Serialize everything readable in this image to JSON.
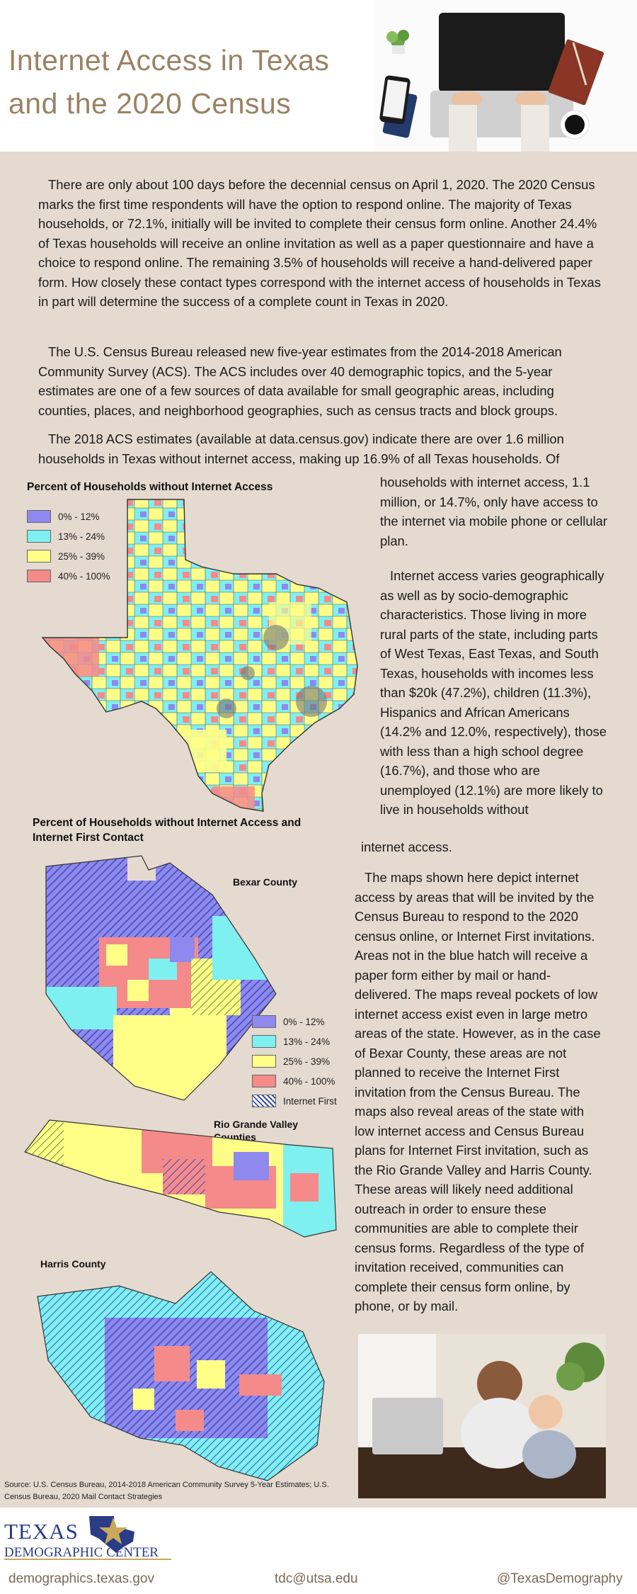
{
  "header": {
    "title_line1": "Internet Access in Texas",
    "title_line2": "and the 2020 Census",
    "image_icon": "laptop-desk-photo"
  },
  "body": {
    "p1": "There are only about 100 days before the decennial census on April 1, 2020. The 2020 Census marks the first time respondents will have the option to respond online. The majority of Texas households, or 72.1%, initially will be invited to complete their census form online. Another 24.4% of Texas households will receive an online invitation as well as a paper questionnaire and have a choice to respond online. The remaining 3.5% of households will receive a hand-delivered paper form. How closely these contact types correspond with the internet access of households in Texas in part will determine the success of a complete count in Texas in 2020.",
    "p2": "The U.S. Census Bureau released new five-year estimates from the 2014-2018 American Community Survey (ACS). The ACS includes over 40 demographic topics, and the 5-year estimates are one of a few sources of data available for small geographic areas, including counties, places, and neighborhood geographies, such as census tracts and block groups.",
    "p3_full": "The 2018 ACS estimates (available at data.census.gov) indicate there are over 1.6 million households in Texas without internet access, making up 16.9% of all Texas households. Of",
    "p3_cont": "households with internet access, 1.1 million, or 14.7%, only have access to the internet via mobile phone or cellular plan.",
    "p4": "Internet access varies geographically as well as by socio-demographic characteristics. Those living in more rural parts of the state, including parts of West Texas, East Texas, and South Texas, households with incomes less than $20k (47.2%), children (11.3%), Hispanics and African Americans (14.2% and 12.0%, respectively), those with less than a high school degree (16.7%), and those who are unemployed (12.1%) are more likely to live in households without",
    "p4_tail": "internet access.",
    "p5": "The maps shown here depict internet access by areas that will be invited by the Census Bureau to respond to the 2020 census online, or Internet First invitations. Areas not in the blue hatch will receive a paper form either by mail or hand-delivered. The maps reveal pockets of low internet access exist even in large metro areas of the state. However, as in the case of Bexar County, these areas are not planned to receive the Internet First invitation from the Census Bureau. The maps also reveal areas of the state with low internet access and Census Bureau plans for Internet First invitation, such as the Rio Grande Valley and Harris County. These areas will likely need additional outreach in order to ensure these communities are able to complete their census forms. Regardless of the type of invitation received, communities can complete their census form online, by phone, or by mail.",
    "photo_icon": "mother-child-laptop-photo"
  },
  "map1": {
    "title": "Percent of Households without Internet Access",
    "legend": [
      "0% - 12%",
      "13% - 24%",
      "25% - 39%",
      "40% - 100%"
    ]
  },
  "map2": {
    "title": "Percent of Households without Internet Access and Internet First Contact",
    "legend": [
      "0% - 12%",
      "13% - 24%",
      "25% - 39%",
      "40% - 100%",
      "Internet First"
    ],
    "bexar_label": "Bexar County",
    "rgv_label": "Rio Grande Valley Counties",
    "harris_label": "Harris County"
  },
  "colors": {
    "c1": "#8f88ee",
    "c2": "#7ff0f0",
    "c3": "#ffff88",
    "c4": "#f58a8a",
    "hatch": "#3a4fb5",
    "title": "#9a8263"
  },
  "source": "Source: U.S. Census Bureau, 2014-2018 American Community Survey 5-Year Estimates; U.S. Census Bureau, 2020 Mail Contact Strategies",
  "footer": {
    "logo_line1": "TEXAS",
    "logo_line2": "DEMOGRAPHIC CENTER",
    "website": "demographics.texas.gov",
    "email": "tdc@utsa.edu",
    "twitter": "@TexasDemography"
  }
}
